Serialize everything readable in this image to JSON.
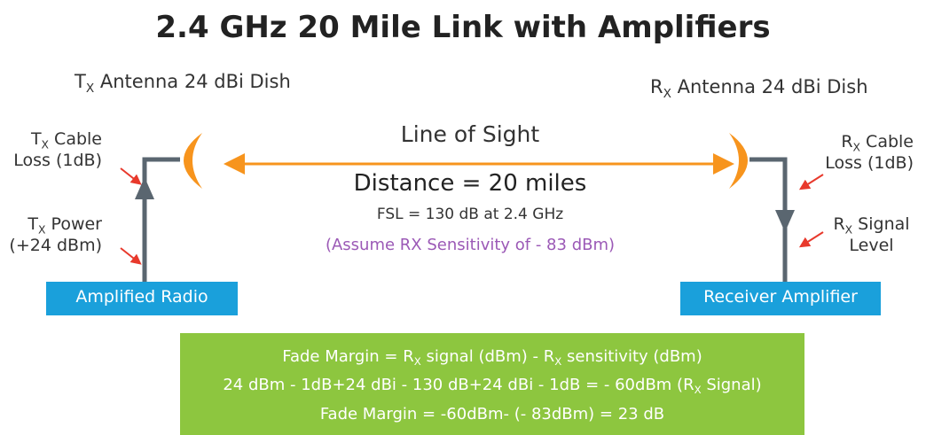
{
  "title": "2.4 GHz 20 Mile Link with Amplifiers",
  "tx_antenna": {
    "main": "T",
    "sub": "X",
    "rest": " Antenna 24 dBi Dish"
  },
  "rx_antenna": {
    "main": "R",
    "sub": "X",
    "rest": " Antenna 24 dBi Dish"
  },
  "tx_cable": {
    "main": "T",
    "sub": "X",
    "rest": " Cable",
    "line2": "Loss (1dB)"
  },
  "tx_power": {
    "main": "T",
    "sub": "X",
    "rest": " Power",
    "line2": "(+24 dBm)"
  },
  "rx_cable": {
    "main": "R",
    "sub": "X",
    "rest": " Cable",
    "line2": "Loss (1dB)"
  },
  "rx_signal": {
    "main": "R",
    "sub": "X",
    "rest": " Signal",
    "line2": "Level"
  },
  "line_of_sight": "Line of Sight",
  "distance": "Distance = 20 miles",
  "fsl": "FSL = 130 dB at 2.4 GHz",
  "assumption": "(Assume RX Sensitivity of - 83 dBm)",
  "tx_box": "Amplified Radio",
  "rx_box": "Receiver Amplifier",
  "formula": {
    "line1": [
      "Fade Margin = R",
      "X",
      " signal (dBm) - R",
      "X",
      " sensitivity (dBm)"
    ],
    "line2": [
      "24 dBm - 1dB+24 dBi - 130 dB+24 dBi - 1dB = - 60dBm (R",
      "X",
      " Signal)"
    ],
    "line3": "Fade Margin = -60dBm- (- 83dBm) = 23 dB"
  }
}
